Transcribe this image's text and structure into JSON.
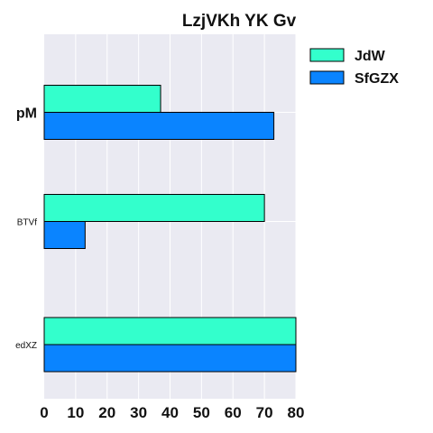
{
  "chart_data": {
    "type": "bar",
    "orientation": "horizontal",
    "title": "LzjVKh YK Gv",
    "categories": [
      "pM",
      "BTVf",
      "edXZ"
    ],
    "series": [
      {
        "name": "JdW",
        "color": "#33ffcc",
        "values": [
          37,
          70,
          80
        ]
      },
      {
        "name": "SfGZX",
        "color": "#0a84ff",
        "values": [
          73,
          13,
          80
        ]
      }
    ],
    "xlim": [
      0,
      80
    ],
    "xticks": [
      0,
      10,
      20,
      30,
      40,
      50,
      60,
      70,
      80
    ],
    "grid": true,
    "legend": "top-right",
    "plot_background": "#eaeaf2"
  }
}
